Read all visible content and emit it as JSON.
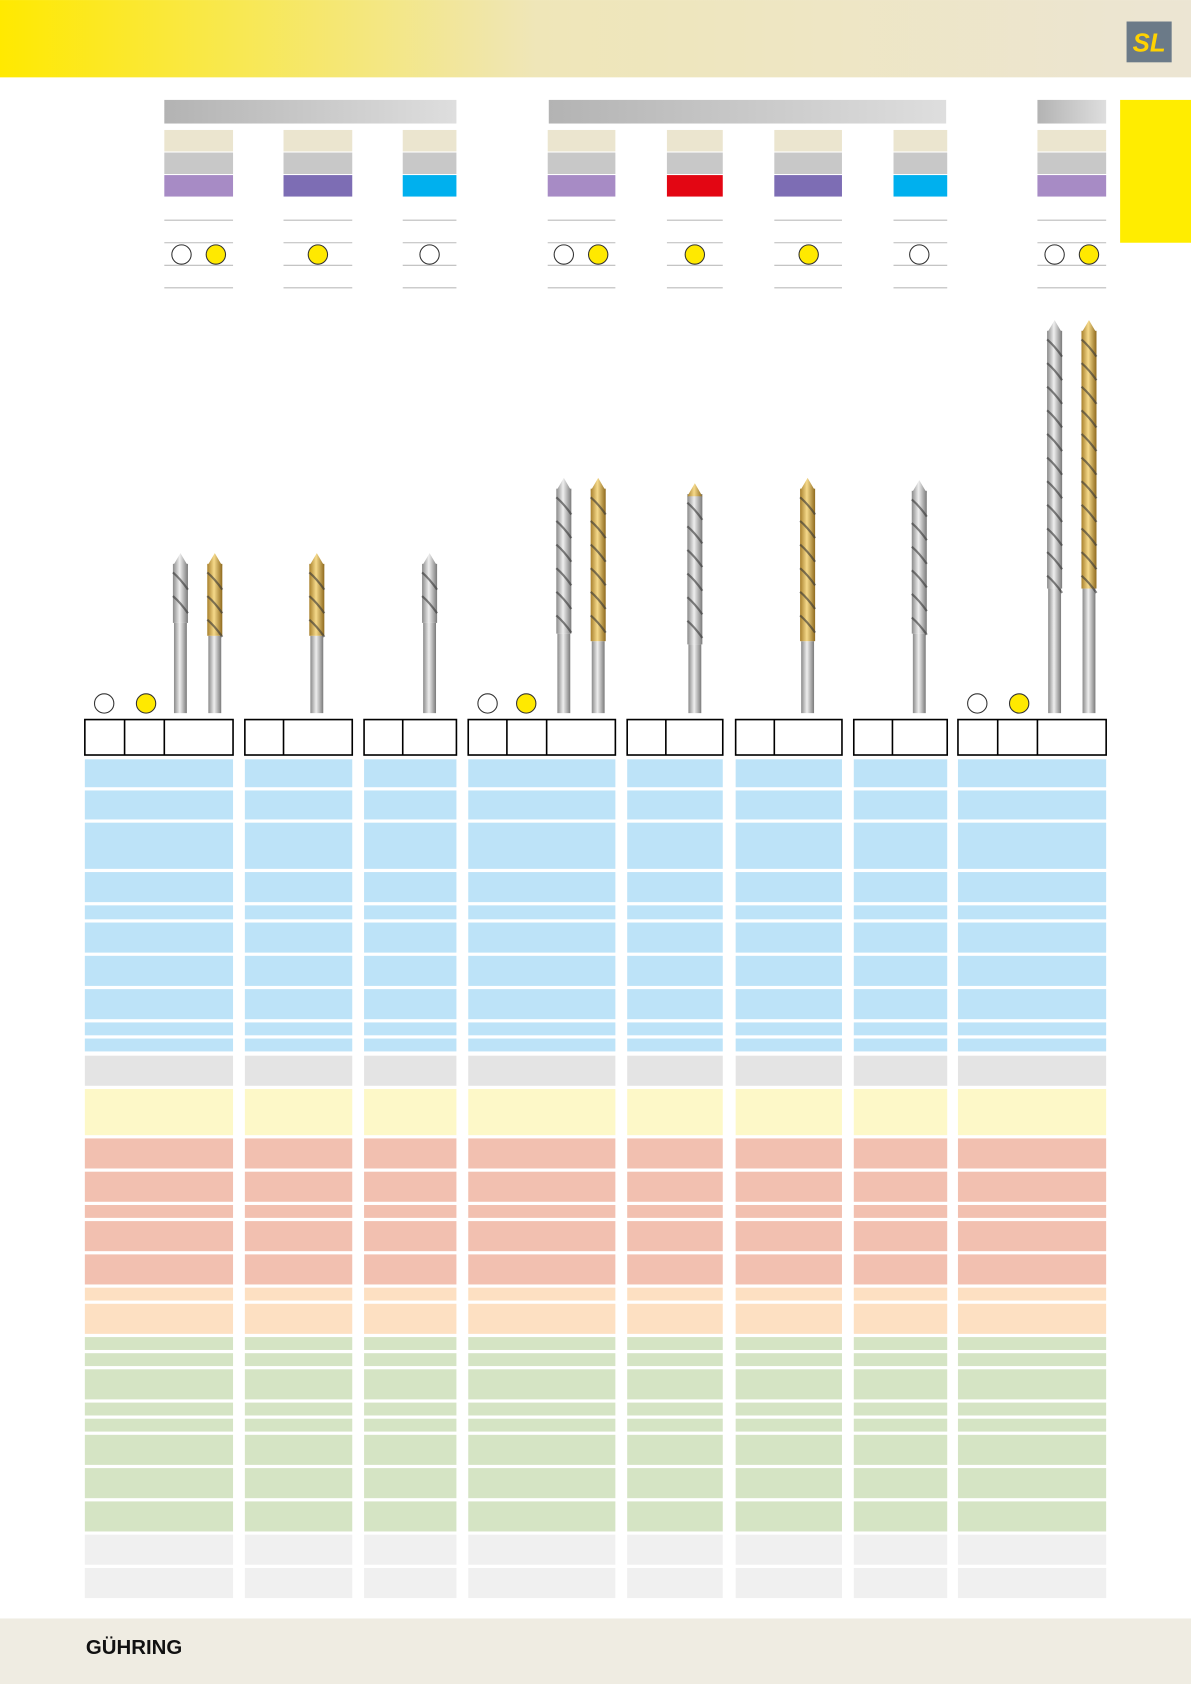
{
  "header": {
    "logo": "SL"
  },
  "footer": {
    "brand": "GÜHRING"
  }
}
